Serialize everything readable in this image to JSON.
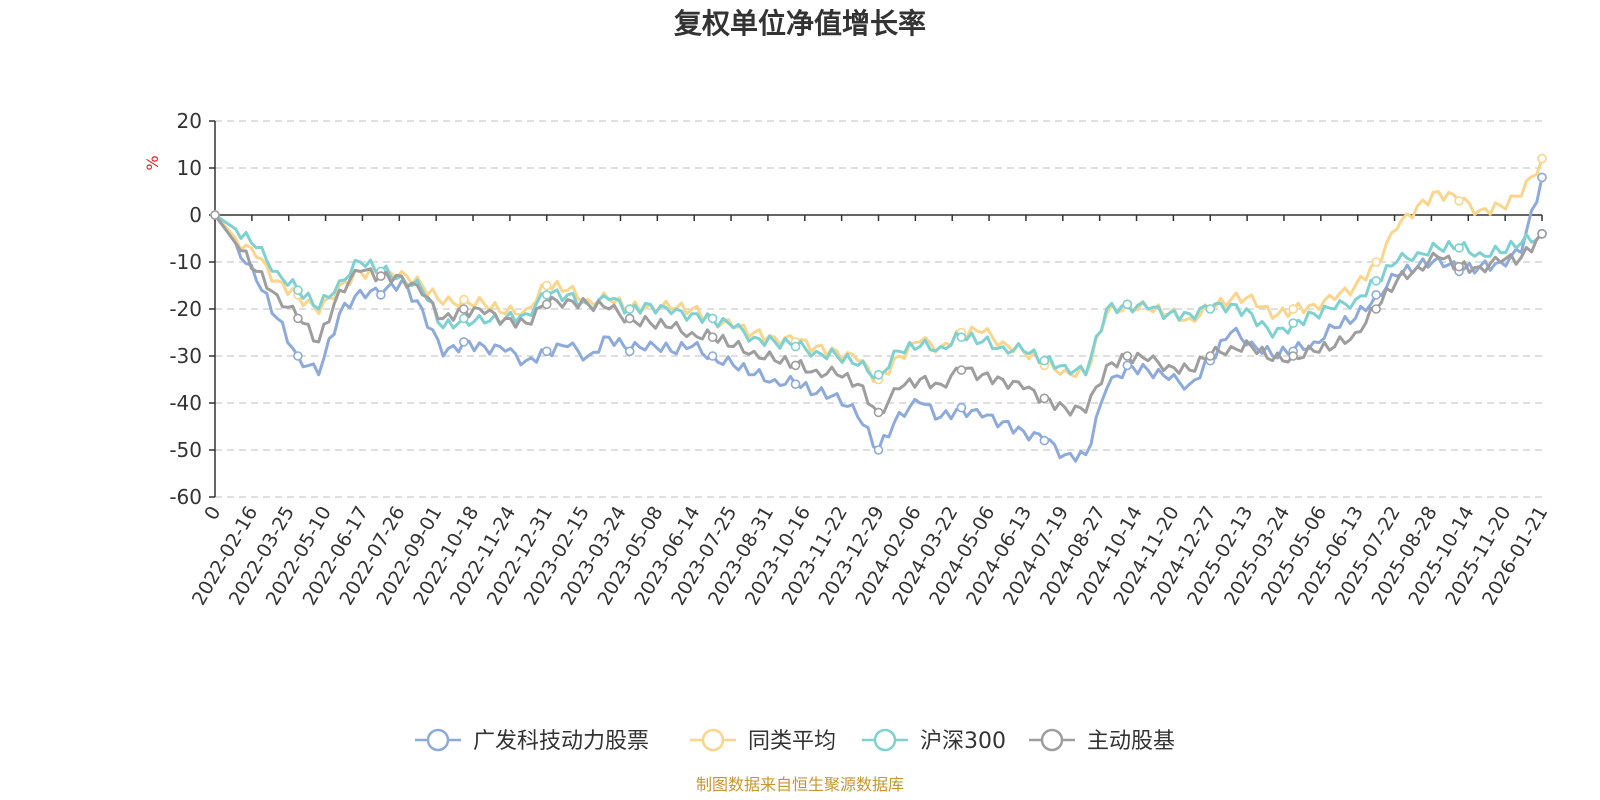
{
  "chart_data": {
    "type": "line",
    "title": "复权单位净值增长率",
    "ylabel": "%",
    "xlabel": "",
    "ylim": [
      -60,
      20
    ],
    "y_ticks": [
      20,
      10,
      0,
      -10,
      -20,
      -30,
      -40,
      -50,
      -60
    ],
    "x_tick_labels": [
      "0",
      "2022-02-16",
      "2022-03-25",
      "2022-05-10",
      "2022-06-17",
      "2022-07-26",
      "2022-09-01",
      "2022-10-18",
      "2022-11-24",
      "2022-12-31",
      "2023-02-15",
      "2023-03-24",
      "2023-05-08",
      "2023-06-14",
      "2023-07-25",
      "2023-08-31",
      "2023-10-16",
      "2023-11-22",
      "2023-12-29",
      "2024-02-06",
      "2024-03-22",
      "2024-05-06",
      "2024-06-13",
      "2024-07-19",
      "2024-08-27",
      "2024-10-14",
      "2024-11-20",
      "2024-12-27",
      "2025-02-13",
      "2025-03-24",
      "2025-05-06",
      "2025-06-13",
      "2025-07-22",
      "2025-08-28",
      "2025-10-14",
      "2025-11-20",
      "2026-01-21"
    ],
    "grid": true,
    "legend_position": "bottom-center",
    "series": [
      {
        "name": "广发科技动力股票",
        "color": "#8eaadb",
        "values": [
          0,
          -6,
          -14,
          -22,
          -30,
          -34,
          -21,
          -16,
          -17,
          -14,
          -20,
          -30,
          -27,
          -28,
          -29,
          -31,
          -29,
          -28,
          -30,
          -26,
          -29,
          -27,
          -29,
          -28,
          -30,
          -32,
          -34,
          -35,
          -36,
          -38,
          -38,
          -43,
          -50,
          -42,
          -40,
          -43,
          -41,
          -43,
          -44,
          -46,
          -48,
          -51,
          -51,
          -37,
          -32,
          -33,
          -35,
          -36,
          -31,
          -25,
          -27,
          -30,
          -29,
          -27,
          -24,
          -22,
          -17,
          -13,
          -11,
          -9,
          -12,
          -11,
          -10,
          -8,
          8
        ]
      },
      {
        "name": "同类平均",
        "color": "#f9d68c",
        "values": [
          0,
          -5,
          -9,
          -14,
          -17,
          -21,
          -15,
          -12,
          -13,
          -12,
          -15,
          -19,
          -18,
          -19,
          -21,
          -20,
          -15,
          -16,
          -18,
          -18,
          -20,
          -19,
          -20,
          -20,
          -22,
          -24,
          -25,
          -26,
          -27,
          -28,
          -29,
          -31,
          -35,
          -30,
          -27,
          -28,
          -25,
          -25,
          -27,
          -29,
          -32,
          -33,
          -34,
          -21,
          -19,
          -20,
          -21,
          -22,
          -20,
          -18,
          -17,
          -22,
          -20,
          -19,
          -18,
          -15,
          -10,
          -3,
          2,
          5,
          3,
          1,
          2,
          4,
          12
        ]
      },
      {
        "name": "沪深300",
        "color": "#7fd1d1",
        "values": [
          0,
          -3,
          -7,
          -12,
          -16,
          -20,
          -14,
          -10,
          -12,
          -13,
          -16,
          -24,
          -22,
          -23,
          -22,
          -21,
          -17,
          -17,
          -19,
          -18,
          -20,
          -19,
          -21,
          -21,
          -22,
          -24,
          -26,
          -27,
          -28,
          -29,
          -30,
          -32,
          -34,
          -29,
          -28,
          -28,
          -26,
          -27,
          -28,
          -29,
          -31,
          -32,
          -34,
          -20,
          -19,
          -20,
          -21,
          -21,
          -20,
          -19,
          -21,
          -26,
          -23,
          -21,
          -20,
          -18,
          -14,
          -10,
          -8,
          -7,
          -7,
          -8,
          -8,
          -6,
          -4
        ]
      },
      {
        "name": "主动股基",
        "color": "#9e9e9e",
        "values": [
          0,
          -6,
          -12,
          -17,
          -22,
          -27,
          -16,
          -12,
          -13,
          -13,
          -17,
          -22,
          -20,
          -21,
          -22,
          -23,
          -19,
          -18,
          -19,
          -20,
          -22,
          -23,
          -24,
          -25,
          -26,
          -28,
          -29,
          -31,
          -32,
          -33,
          -34,
          -36,
          -42,
          -37,
          -35,
          -36,
          -33,
          -34,
          -35,
          -37,
          -39,
          -41,
          -42,
          -32,
          -30,
          -31,
          -32,
          -33,
          -30,
          -28,
          -28,
          -31,
          -30,
          -29,
          -28,
          -25,
          -20,
          -14,
          -11,
          -9,
          -11,
          -11,
          -10,
          -9,
          -4
        ]
      }
    ]
  },
  "source_note": "制图数据来自恒生聚源数据库"
}
